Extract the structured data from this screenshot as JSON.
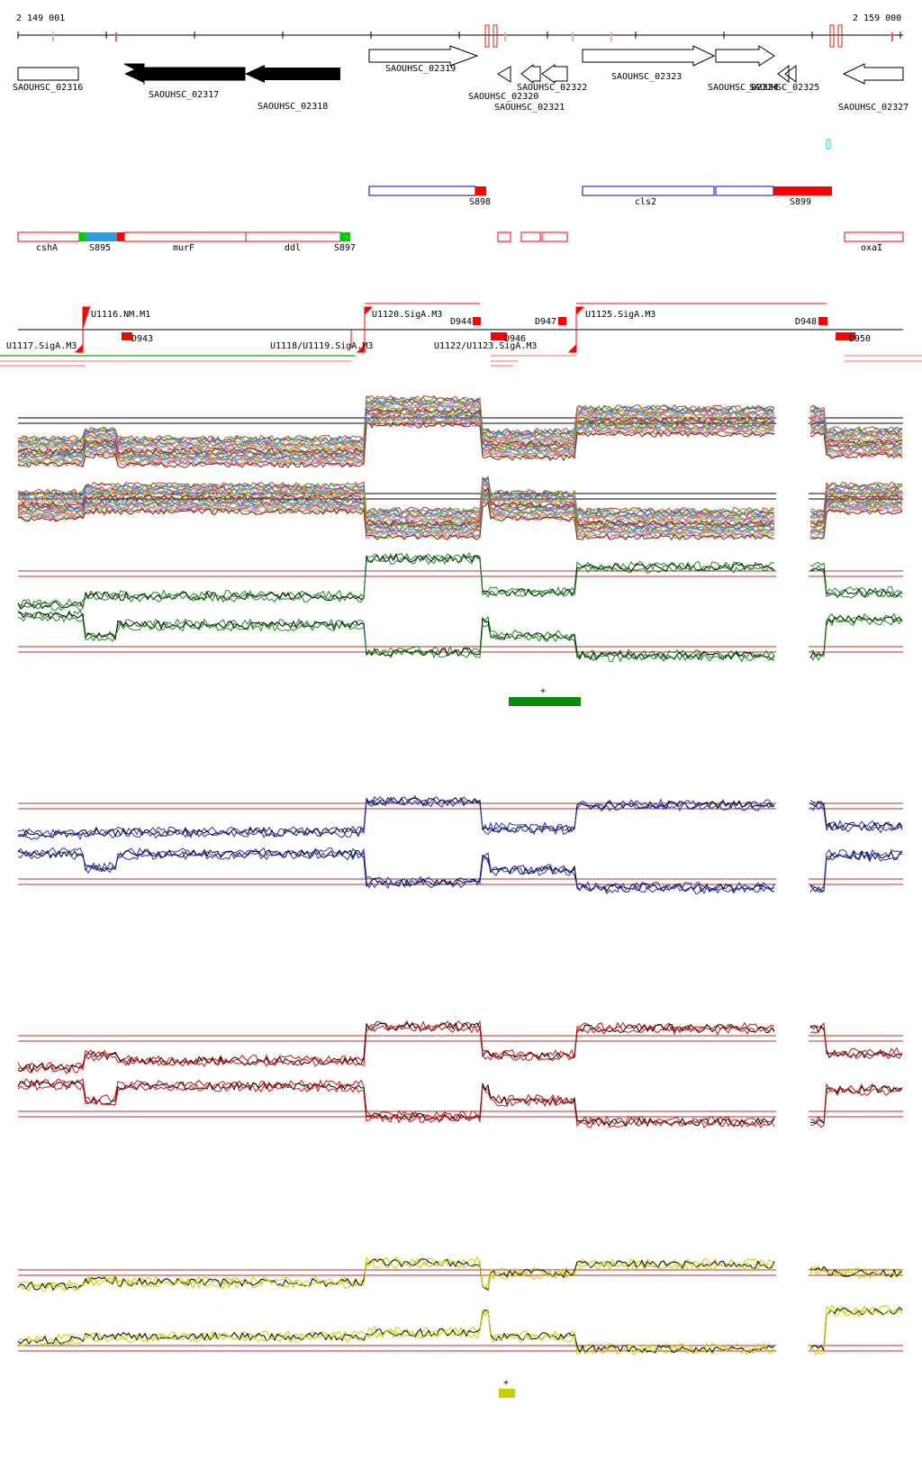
{
  "ruler": {
    "start_label": "2 149 001",
    "end_label": "2 159 000"
  },
  "genes": [
    {
      "id": "g1",
      "label": "SAOUHSC_02316",
      "strand": "+",
      "fill": "#ffffff"
    },
    {
      "id": "g2",
      "label": "SAOUHSC_02317",
      "strand": "-",
      "fill": "#000000"
    },
    {
      "id": "g3",
      "label": "SAOUHSC_02318",
      "strand": "-",
      "fill": "#000000"
    },
    {
      "id": "g4",
      "label": "SAOUHSC_02319",
      "strand": "+",
      "fill": "#ffffff"
    },
    {
      "id": "g5",
      "label": "SAOUHSC_02320",
      "strand": "-",
      "fill": "#ffffff"
    },
    {
      "id": "g6",
      "label": "SAOUHSC_02321",
      "strand": "-",
      "fill": "#ffffff"
    },
    {
      "id": "g7",
      "label": "SAOUHSC_02322",
      "strand": "-",
      "fill": "#ffffff"
    },
    {
      "id": "g8",
      "label": "SAOUHSC_02323",
      "strand": "+",
      "fill": "#ffffff"
    },
    {
      "id": "g9",
      "label": "SAOUHSC_02324",
      "strand": "+",
      "fill": "#ffffff"
    },
    {
      "id": "g10",
      "label": "SAOUHSC_02325",
      "strand": "-",
      "fill": "#ffffff"
    },
    {
      "id": "g11",
      "label": "SAOUHSC_02327",
      "strand": "-",
      "fill": "#ffffff"
    }
  ],
  "features_row1": [
    {
      "label": "S898",
      "color": "#0000cc"
    },
    {
      "label": "cls2",
      "color": "#0000cc"
    },
    {
      "label": "S899",
      "color": "#ff0000"
    }
  ],
  "features_row2": [
    {
      "label": "cshA"
    },
    {
      "label": "S895"
    },
    {
      "label": "murF"
    },
    {
      "label": "ddl"
    },
    {
      "label": "S897"
    },
    {
      "label": "oxaI"
    }
  ],
  "segments": {
    "upper": [
      "U1116.NM.M1",
      "U1120.SigA.M3",
      "D944",
      "D947",
      "U1125.SigA.M3",
      "D948"
    ],
    "lower": [
      "U1117.SigA.M3",
      "D943",
      "U1118/U1119.SigA.M3",
      "U1122/U1123.SigA.M3",
      "D946",
      "D950"
    ]
  },
  "colors": {
    "gene_outline": "#000000",
    "feature_red": "#ff0000",
    "feature_blue": "#0000cc",
    "feature_green": "#00cc00",
    "feature_lightblue": "#3399dd",
    "threshold_red": "#b03030",
    "panel_green": "#1a8a1a",
    "panel_blue": "#2233bb",
    "panel_red": "#cc1111",
    "panel_yellow": "#cccc00",
    "plus_green_bar": "#0a8a0a",
    "plus_yellow_bar": "#cccc00"
  },
  "markers": {
    "plus_green": "+",
    "plus_yellow": "+"
  }
}
